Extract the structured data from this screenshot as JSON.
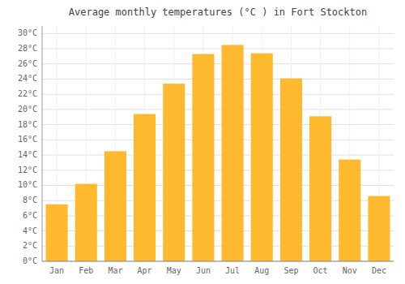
{
  "chart_data": {
    "type": "bar",
    "title": "Average monthly temperatures (°C ) in Fort Stockton",
    "categories": [
      "Jan",
      "Feb",
      "Mar",
      "Apr",
      "May",
      "Jun",
      "Jul",
      "Aug",
      "Sep",
      "Oct",
      "Nov",
      "Dec"
    ],
    "values": [
      7.5,
      10.2,
      14.5,
      19.4,
      23.4,
      27.3,
      28.5,
      27.4,
      24.1,
      19.1,
      13.4,
      8.6
    ],
    "color": "#FFB92E",
    "ylim": [
      0,
      31
    ],
    "yticks": [
      {
        "value": 0,
        "label": "0°C"
      },
      {
        "value": 2,
        "label": "2°C"
      },
      {
        "value": 4,
        "label": "4°C"
      },
      {
        "value": 6,
        "label": "6°C"
      },
      {
        "value": 8,
        "label": "8°C"
      },
      {
        "value": 10,
        "label": "10°C"
      },
      {
        "value": 12,
        "label": "12°C"
      },
      {
        "value": 14,
        "label": "14°C"
      },
      {
        "value": 16,
        "label": "16°C"
      },
      {
        "value": 18,
        "label": "18°C"
      },
      {
        "value": 20,
        "label": "20°C"
      },
      {
        "value": 22,
        "label": "22°C"
      },
      {
        "value": 24,
        "label": "24°C"
      },
      {
        "value": 26,
        "label": "26°C"
      },
      {
        "value": 28,
        "label": "28°C"
      },
      {
        "value": 30,
        "label": "30°C"
      }
    ],
    "grid": true
  }
}
